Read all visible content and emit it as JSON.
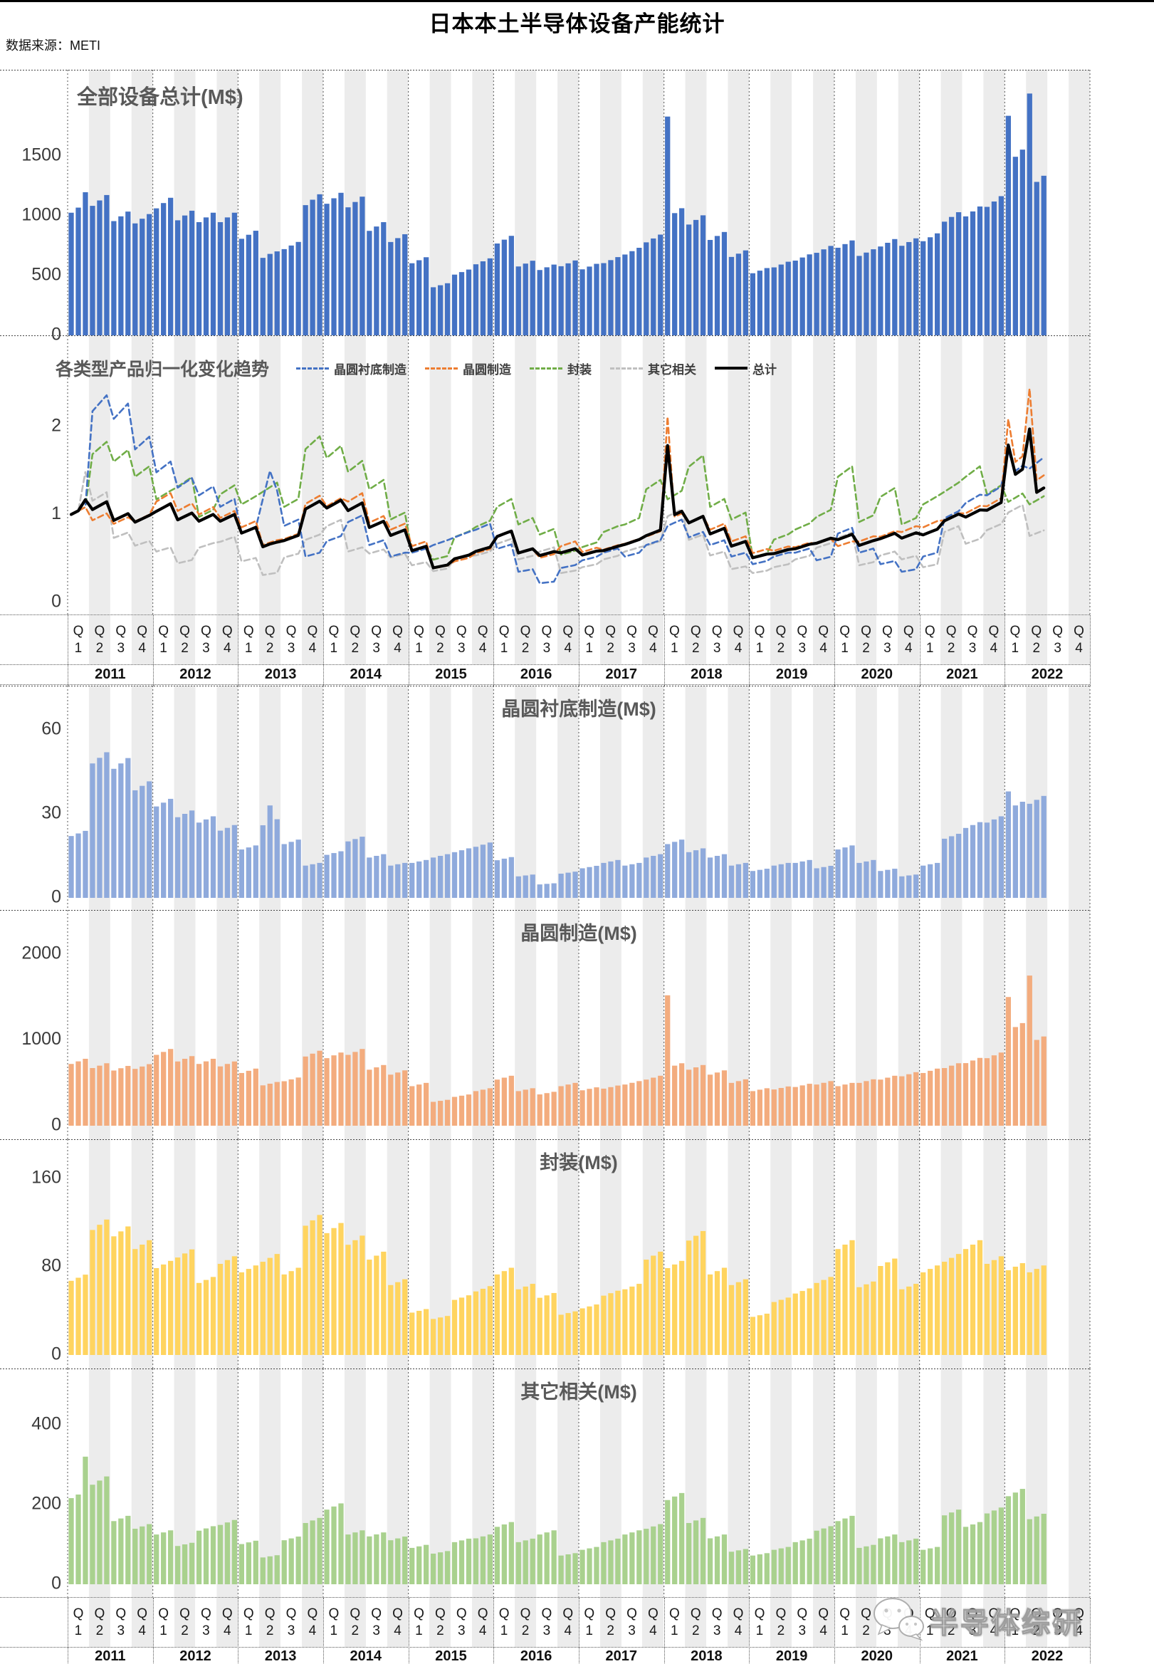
{
  "header": {
    "title": "日本本土半导体设备产能统计",
    "source_label": "数据来源：METI"
  },
  "colors": {
    "total_bar": "#4472C4",
    "substrate_bar": "#8FAADC",
    "wafer_bar": "#F3AC7E",
    "packaging_bar": "#FFD45F",
    "other_bar": "#A9D18E",
    "trend_substrate": "#4472C4",
    "trend_wafer": "#ED7D31",
    "trend_packaging": "#70AD47",
    "trend_other": "#BFBFBF",
    "trend_total": "#000000",
    "stripe": "#ECECEC",
    "grid": "#555555",
    "tick_text": "#3A3A3A",
    "title_text": "#595959"
  },
  "charts": {
    "total": {
      "title": "全部设备总计(M$)",
      "yticks": [
        0,
        500,
        1000,
        1500
      ]
    },
    "trend": {
      "title": "各类型产品归一化变化趋势",
      "yticks": [
        0,
        1,
        2
      ],
      "legend": [
        {
          "key": "substrate",
          "label": "晶圆衬底制造",
          "color": "#4472C4",
          "style": "dashed"
        },
        {
          "key": "wafer",
          "label": "晶圆制造",
          "color": "#ED7D31",
          "style": "dashed"
        },
        {
          "key": "packaging",
          "label": "封装",
          "color": "#70AD47",
          "style": "dashed"
        },
        {
          "key": "other",
          "label": "其它相关",
          "color": "#BFBFBF",
          "style": "dashed"
        },
        {
          "key": "total",
          "label": "总计",
          "color": "#000000",
          "style": "solid"
        }
      ]
    },
    "substrate": {
      "title": "晶圆衬底制造(M$)",
      "yticks": [
        0,
        30,
        60
      ]
    },
    "wafer": {
      "title": "晶圆制造(M$)",
      "yticks": [
        0,
        1000,
        2000
      ]
    },
    "packaging": {
      "title": "封装(M$)",
      "yticks": [
        0,
        80,
        160
      ]
    },
    "other": {
      "title": "其它相关(M$)",
      "yticks": [
        0,
        200,
        400
      ]
    }
  },
  "axis": {
    "years": [
      "2011",
      "2012",
      "2013",
      "2014",
      "2015",
      "2016",
      "2017",
      "2018",
      "2019",
      "2020",
      "2021",
      "2022"
    ],
    "quarter_prefix": "Q",
    "quarter_numbers": [
      "1",
      "2",
      "3",
      "4"
    ]
  },
  "watermark": {
    "text": "半导体综研",
    "icon": "wechat-icon"
  },
  "chart_data": {
    "type": "bar",
    "unit": "M$",
    "title": "日本本土半导体设备产能统计",
    "source": "METI",
    "grid": "quarter stripes + dotted year separators",
    "legend_position": "top of trend chart",
    "time_axis": {
      "quarter_categories": [
        "2011Q1",
        "2011Q2",
        "2011Q3",
        "2011Q4",
        "2012Q1",
        "2012Q2",
        "2012Q3",
        "2012Q4",
        "2013Q1",
        "2013Q2",
        "2013Q3",
        "2013Q4",
        "2014Q1",
        "2014Q2",
        "2014Q3",
        "2014Q4",
        "2015Q1",
        "2015Q2",
        "2015Q3",
        "2015Q4",
        "2016Q1",
        "2016Q2",
        "2016Q3",
        "2016Q4",
        "2017Q1",
        "2017Q2",
        "2017Q3",
        "2017Q4",
        "2018Q1",
        "2018Q2",
        "2018Q3",
        "2018Q4",
        "2019Q1",
        "2019Q2",
        "2019Q3",
        "2019Q4",
        "2020Q1",
        "2020Q2",
        "2020Q3",
        "2020Q4",
        "2021Q1",
        "2021Q2",
        "2021Q3",
        "2021Q4",
        "2022Q1",
        "2022Q2",
        "2022Q3",
        "2022Q4"
      ],
      "data_through": "2022Q2",
      "months_per_quarter": 3
    },
    "sub_charts": [
      {
        "key": "total",
        "title": "全部设备总计(M$)",
        "ylim": [
          0,
          2200
        ],
        "yticks": [
          0,
          500,
          1000,
          1500
        ],
        "derived": "sum of the four category series"
      },
      {
        "key": "trend",
        "title": "各类型产品归一化变化趋势",
        "ylim": [
          0,
          2.75
        ],
        "yticks": [
          0,
          1,
          2
        ],
        "derived": "each series normalized to its first month of 2011"
      },
      {
        "key": "substrate",
        "title": "晶圆衬底制造(M$)",
        "ylim": [
          0,
          75
        ],
        "yticks": [
          0,
          30,
          60
        ]
      },
      {
        "key": "wafer",
        "title": "晶圆制造(M$)",
        "ylim": [
          0,
          2500
        ],
        "yticks": [
          0,
          1000,
          2000
        ]
      },
      {
        "key": "packaging",
        "title": "封装(M$)",
        "ylim": [
          0,
          200
        ],
        "yticks": [
          0,
          80,
          160
        ]
      },
      {
        "key": "other",
        "title": "其它相关(M$)",
        "ylim": [
          0,
          520
        ],
        "yticks": [
          0,
          200,
          400
        ]
      }
    ],
    "series": [
      {
        "key": "substrate",
        "name": "晶圆衬底制造",
        "values": [
          23,
          50,
          48,
          40,
          34,
          30,
          28,
          25,
          18,
          27,
          20,
          12,
          16,
          21,
          15,
          12,
          13,
          15,
          17,
          19,
          14,
          8,
          5,
          9,
          11,
          13,
          12,
          15,
          20,
          17,
          15,
          12,
          10,
          12,
          13,
          11,
          18,
          13,
          10,
          8,
          12,
          22,
          26,
          28,
          33,
          35
        ]
      },
      {
        "key": "wafer",
        "name": "晶圆制造",
        "values": [
          750,
          700,
          670,
          690,
          860,
          780,
          750,
          720,
          640,
          490,
          540,
          840,
          820,
          860,
          680,
          620,
          480,
          290,
          350,
          420,
          560,
          420,
          380,
          480,
          430,
          450,
          500,
          560,
          700,
          680,
          620,
          520,
          420,
          440,
          470,
          500,
          480,
          520,
          560,
          600,
          640,
          700,
          760,
          820,
          1150,
          1000
        ]
      },
      {
        "key": "packaging",
        "name": "封装",
        "values": [
          70,
          118,
          112,
          100,
          82,
          92,
          68,
          86,
          78,
          88,
          76,
          122,
          115,
          104,
          90,
          66,
          40,
          34,
          52,
          60,
          76,
          62,
          54,
          38,
          44,
          56,
          62,
          90,
          82,
          108,
          76,
          66,
          36,
          50,
          58,
          68,
          100,
          64,
          84,
          62,
          78,
          88,
          100,
          86,
          80,
          78
        ]
      },
      {
        "key": "other",
        "name": "其它相关",
        "values": [
          225,
          260,
          165,
          145,
          130,
          100,
          140,
          155,
          105,
          70,
          115,
          160,
          195,
          130,
          125,
          115,
          95,
          80,
          110,
          120,
          150,
          110,
          130,
          75,
          90,
          110,
          130,
          145,
          220,
          160,
          120,
          85,
          75,
          90,
          110,
          140,
          165,
          95,
          120,
          110,
          90,
          180,
          150,
          185,
          230,
          170
        ]
      }
    ],
    "monthly_spike_overrides": [
      {
        "series": "other",
        "quarter": 0,
        "month": 2,
        "value": 320,
        "note": "2011-03 spike"
      },
      {
        "series": "substrate",
        "quarter": 9,
        "month": 1,
        "value": 33,
        "note": "2013-05 spike"
      },
      {
        "series": "wafer",
        "quarter": 28,
        "month": 0,
        "value": 1520,
        "note": "2018-01 spike"
      },
      {
        "series": "substrate",
        "quarter": 44,
        "month": 0,
        "value": 38,
        "note": "2022-01 spike"
      },
      {
        "series": "wafer",
        "quarter": 44,
        "month": 0,
        "value": 1500,
        "note": "2022-01 spike"
      },
      {
        "series": "wafer",
        "quarter": 45,
        "month": 0,
        "value": 1750,
        "note": "2022-04 spike"
      }
    ]
  }
}
